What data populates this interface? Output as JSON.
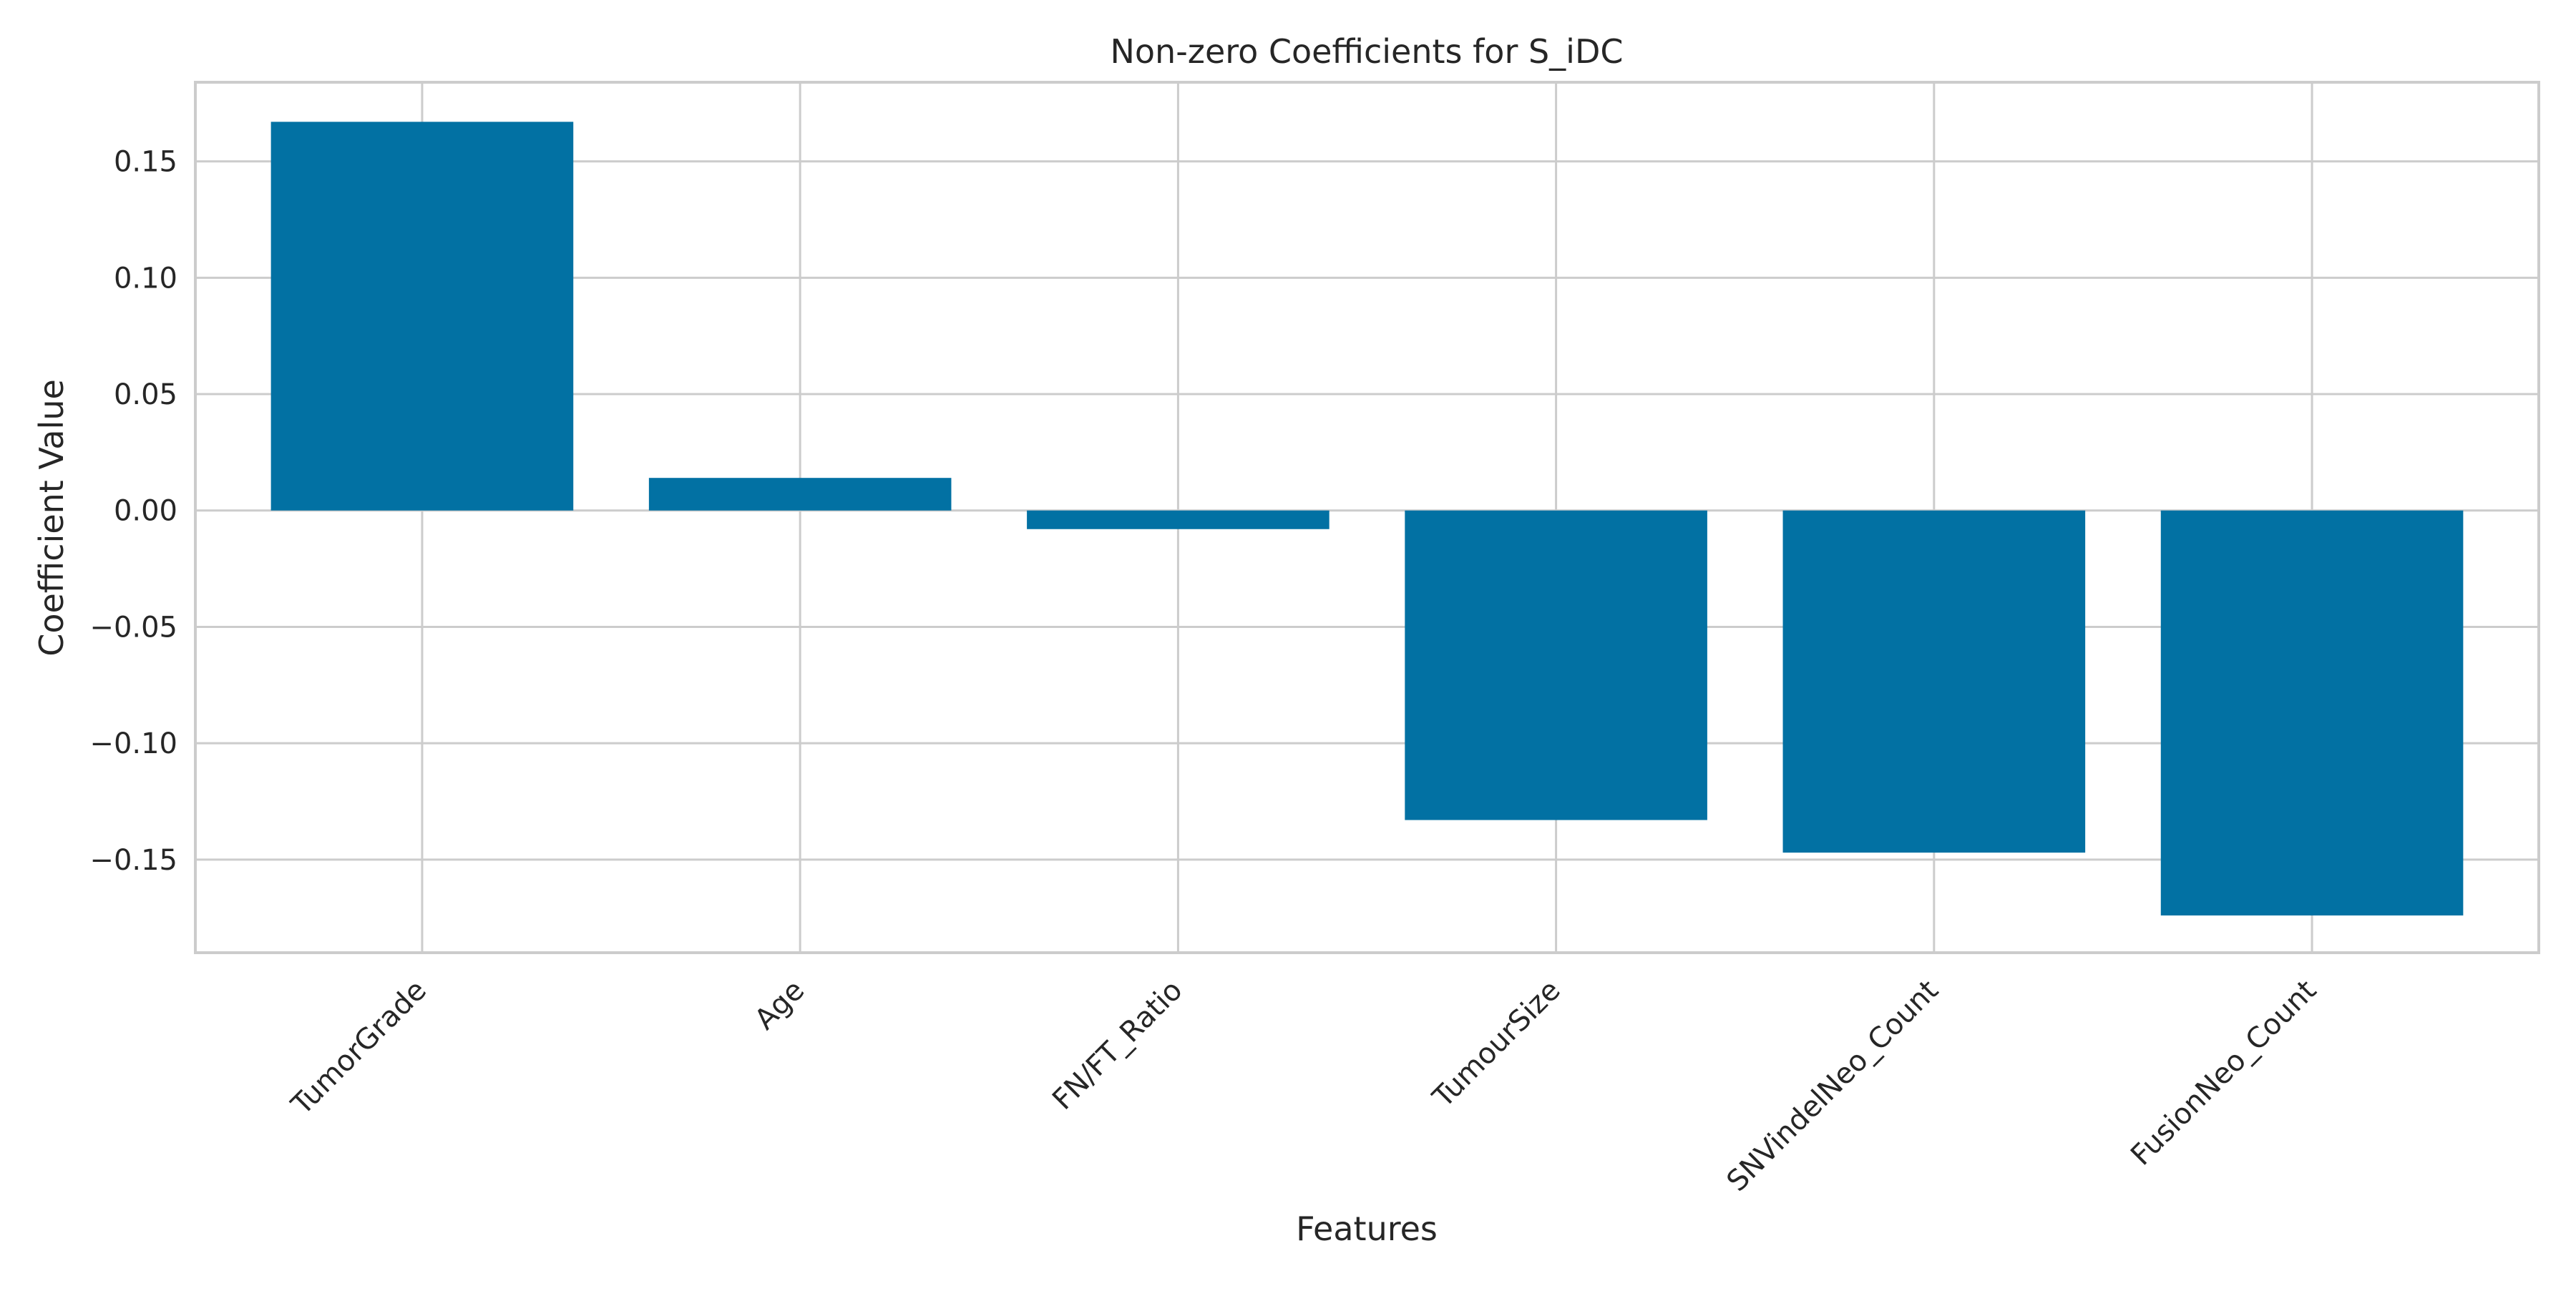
{
  "chart_data": {
    "type": "bar",
    "title": "Non-zero Coefficients for S_iDC",
    "xlabel": "Features",
    "ylabel": "Coefficient Value",
    "categories": [
      "TumorGrade",
      "Age",
      "FN/FT_Ratio",
      "TumourSize",
      "SNVindelNeo_Count",
      "FusionNeo_Count"
    ],
    "values": [
      0.167,
      0.014,
      -0.008,
      -0.133,
      -0.147,
      -0.174
    ],
    "ylim": [
      -0.19,
      0.184
    ],
    "yticks": [
      -0.15,
      -0.1,
      -0.05,
      0.0,
      0.05,
      0.1,
      0.15
    ],
    "ytick_labels": [
      "−0.15",
      "−0.10",
      "−0.05",
      "0.00",
      "0.05",
      "0.10",
      "0.15"
    ],
    "grid": true,
    "bar_color": "#0271a3",
    "grid_color": "#cccccc"
  }
}
